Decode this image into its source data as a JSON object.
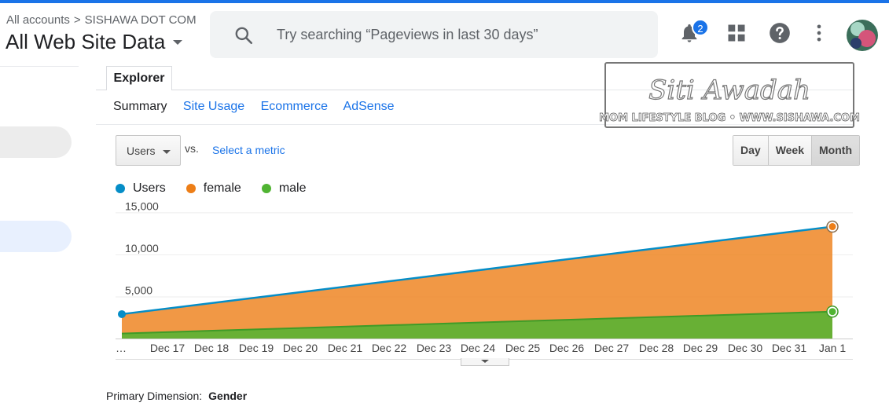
{
  "header": {
    "breadcrumb_root": "All accounts",
    "breadcrumb_sep": ">",
    "breadcrumb_account": "SISHAWA DOT COM",
    "view_title": "All Web Site Data",
    "search_placeholder": "Try searching “Pageviews in last 30 days”",
    "notification_count": "2",
    "icons": [
      "search-icon",
      "bell-icon",
      "apps-grid-icon",
      "help-icon",
      "more-vert-icon"
    ]
  },
  "explorer": {
    "tab_label": "Explorer",
    "subtabs": [
      "Summary",
      "Site Usage",
      "Ecommerce",
      "AdSense"
    ],
    "metric_select": "Users",
    "vs_label": "vs.",
    "select_metric_link": "Select a metric",
    "granularity": [
      "Day",
      "Week",
      "Month"
    ],
    "granularity_selected": "Month"
  },
  "watermark": {
    "name": "Siti Awadah",
    "tagline": "MOM LIFESTYLE BLOG • WWW.SISHAWA.COM"
  },
  "chart_data": {
    "type": "area",
    "legend": [
      {
        "name": "Users",
        "color": "#058dc7"
      },
      {
        "name": "female",
        "color": "#ed7e17"
      },
      {
        "name": "male",
        "color": "#50b432"
      }
    ],
    "categories": [
      "…",
      "Dec 17",
      "Dec 18",
      "Dec 19",
      "Dec 20",
      "Dec 21",
      "Dec 22",
      "Dec 23",
      "Dec 24",
      "Dec 25",
      "Dec 26",
      "Dec 27",
      "Dec 28",
      "Dec 29",
      "Dec 30",
      "Dec 31",
      "Jan 1"
    ],
    "y_ticks": [
      "15,000",
      "10,000",
      "5,000"
    ],
    "ylim": [
      0,
      15000
    ],
    "series": [
      {
        "name": "Users",
        "points": [
          {
            "x": "start",
            "y": 2900
          },
          {
            "x": "Jan 1",
            "y": 13300
          }
        ]
      },
      {
        "name": "female",
        "points": [
          {
            "x": "start",
            "y": 2900
          },
          {
            "x": "Jan 1",
            "y": 13300
          }
        ]
      },
      {
        "name": "male",
        "points": [
          {
            "x": "start",
            "y": 600
          },
          {
            "x": "Jan 1",
            "y": 3200
          }
        ]
      }
    ],
    "grid": true,
    "legend_position": "top-left"
  },
  "primary_dimension": {
    "label": "Primary Dimension:",
    "value": "Gender"
  }
}
